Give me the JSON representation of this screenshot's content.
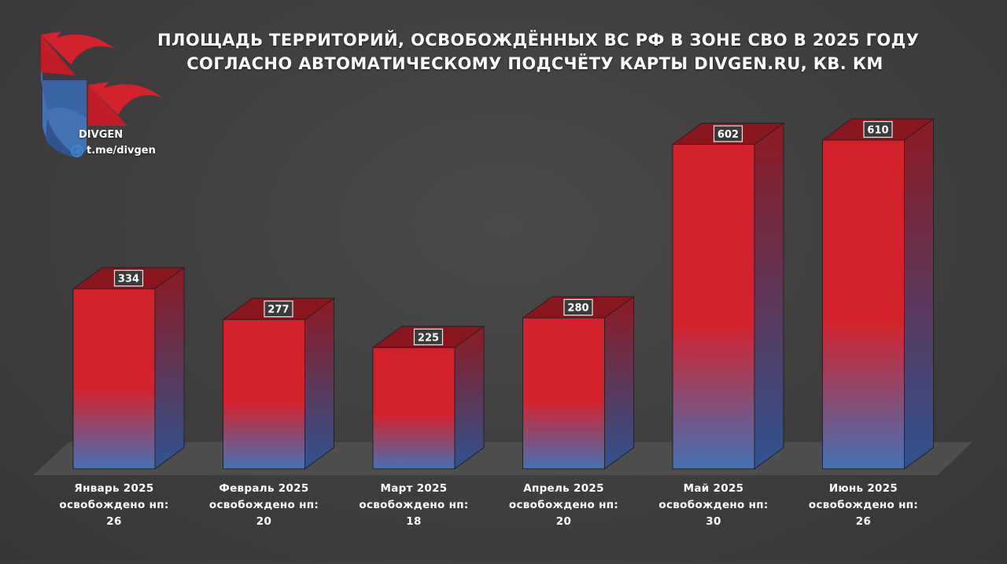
{
  "title_lines": [
    "ПЛОЩАДЬ ТЕРРИТОРИЙ, ОСВОБОЖДЁННЫХ ВС РФ В ЗОНЕ СВО В 2025 ГОДУ",
    "СОГЛАСНО АВТОМАТИЧЕСКОМУ ПОДСЧЁТУ КАРТЫ DIVGEN.RU, КВ. КМ"
  ],
  "brand": {
    "name": "DIVGEN",
    "handle": "t.me/divgen",
    "icon": "telegram-icon"
  },
  "colors": {
    "red": "#d4222c",
    "blue": "#4472b4",
    "background": "#404040"
  },
  "chart_data": {
    "type": "bar",
    "title": "ПЛОЩАДЬ ТЕРРИТОРИЙ, ОСВОБОЖДЁННЫХ ВС РФ В ЗОНЕ СВО В 2025 ГОДУ СОГЛАСНО АВТОМАТИЧЕСКОМУ ПОДСЧЁТУ КАРТЫ DIVGEN.RU, КВ. КМ",
    "categories": [
      "Январь 2025",
      "Февраль 2025",
      "Март 2025",
      "Апрель 2025",
      "Май 2025",
      "Июнь 2025"
    ],
    "values": [
      334,
      277,
      225,
      280,
      602,
      610
    ],
    "value_labels": [
      "334",
      "277",
      "225",
      "280",
      "602",
      "610"
    ],
    "settlements_label": "освобождено нп:",
    "settlements": [
      "26",
      "20",
      "18",
      "20",
      "30",
      "26"
    ],
    "ylim": [
      0,
      610
    ],
    "grid": false
  }
}
